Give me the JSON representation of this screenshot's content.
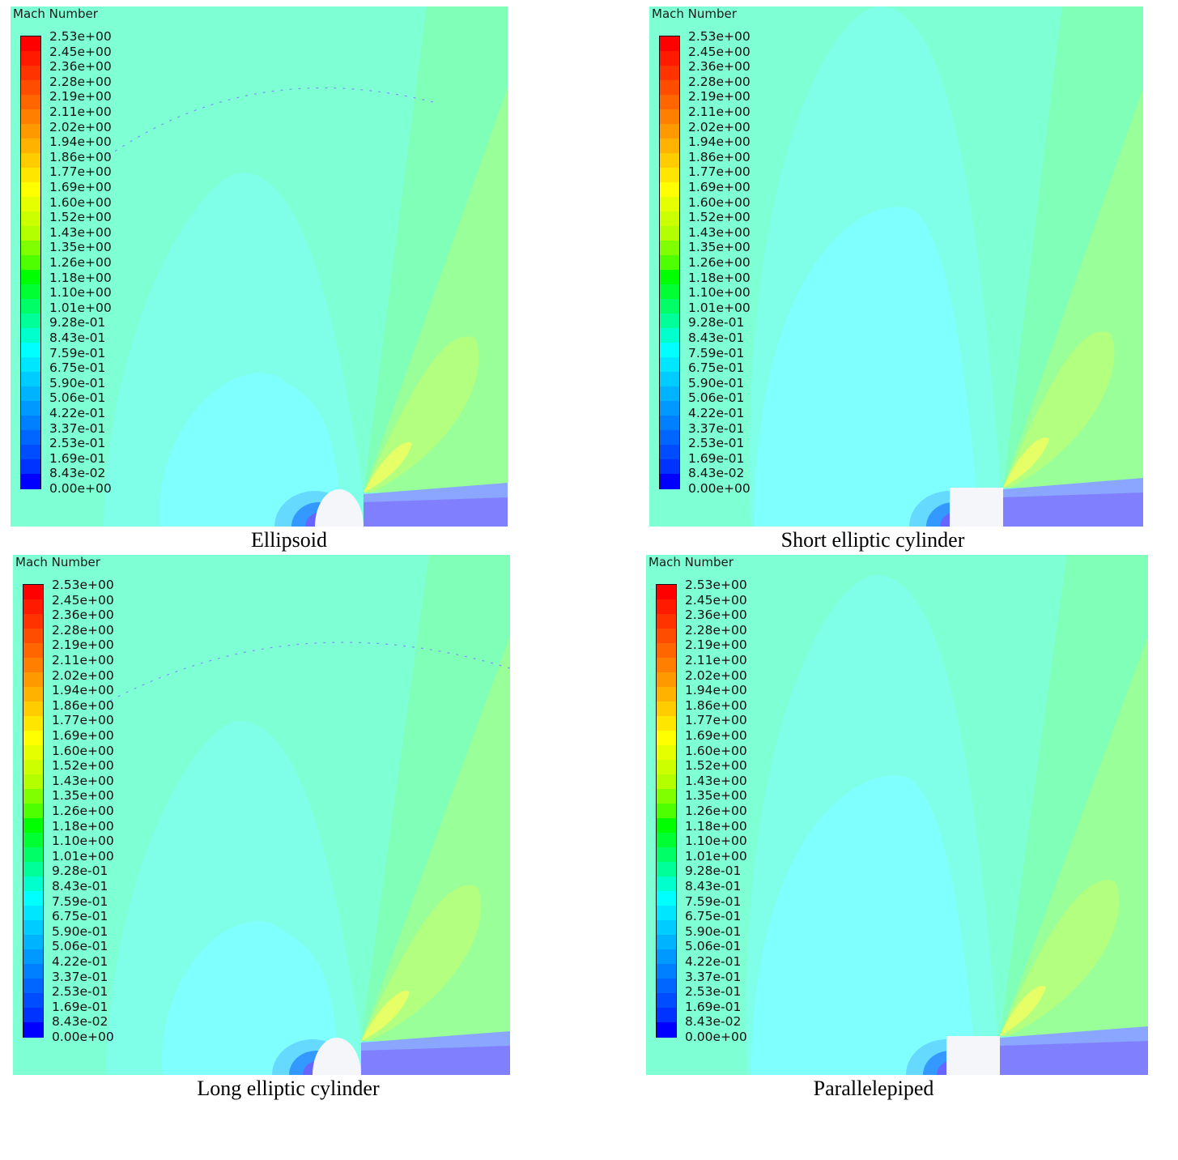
{
  "colorbar": {
    "title": "Mach Number",
    "ticks": [
      "2.53e+00",
      "2.45e+00",
      "2.36e+00",
      "2.28e+00",
      "2.19e+00",
      "2.11e+00",
      "2.02e+00",
      "1.94e+00",
      "1.86e+00",
      "1.77e+00",
      "1.69e+00",
      "1.60e+00",
      "1.52e+00",
      "1.43e+00",
      "1.35e+00",
      "1.26e+00",
      "1.18e+00",
      "1.10e+00",
      "1.01e+00",
      "9.28e-01",
      "8.43e-01",
      "7.59e-01",
      "6.75e-01",
      "5.90e-01",
      "5.06e-01",
      "4.22e-01",
      "3.37e-01",
      "2.53e-01",
      "1.69e-01",
      "8.43e-02",
      "0.00e+00"
    ],
    "range": [
      0.0,
      2.53
    ],
    "colors": [
      "#ff0000",
      "#ff1a00",
      "#ff3300",
      "#ff4d00",
      "#ff6600",
      "#ff8000",
      "#ff9900",
      "#ffb300",
      "#ffcc00",
      "#ffe600",
      "#ffff00",
      "#e6ff00",
      "#ccff00",
      "#b3ff00",
      "#80ff00",
      "#4dff00",
      "#00ff00",
      "#00ff33",
      "#00ff66",
      "#00ff99",
      "#00ffcc",
      "#00ffff",
      "#00e6ff",
      "#00ccff",
      "#00b3ff",
      "#0099ff",
      "#0080ff",
      "#0066ff",
      "#004dff",
      "#0033ff",
      "#0000ff"
    ]
  },
  "field_colors": {
    "freestream": "#7fffd4",
    "subsonic_bubble": "#7fffe8",
    "inner_zone": "#80ffff",
    "fan_light": "#80ffb8",
    "fan_mid": "#99ff99",
    "fan_bright": "#b3ff80",
    "fan_peak": "#e6ff66",
    "wake": "#8080ff",
    "wake_edge": "#8aa6ff",
    "body": "#f4f6fa"
  },
  "panels": [
    {
      "caption": "Ellipsoid",
      "body_shape": "ellipse"
    },
    {
      "caption": "Short elliptic cylinder",
      "body_shape": "rectangle"
    },
    {
      "caption": "Long elliptic cylinder",
      "body_shape": "ellipse"
    },
    {
      "caption": "Parallelepiped",
      "body_shape": "rectangle"
    }
  ]
}
